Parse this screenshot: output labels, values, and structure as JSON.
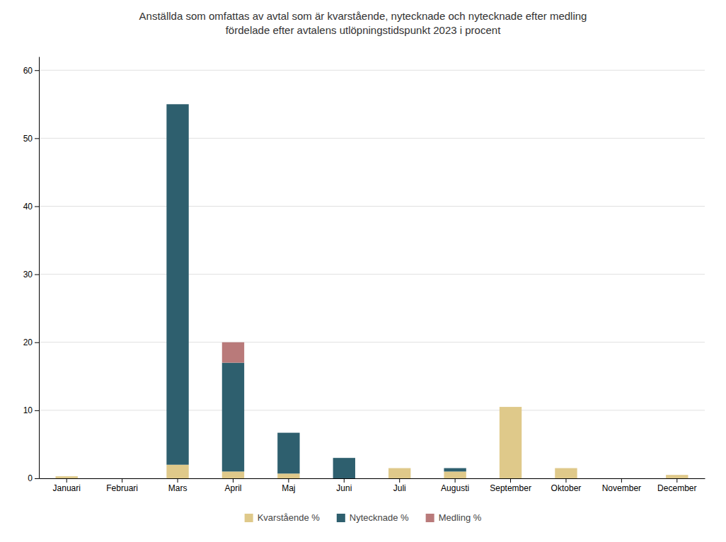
{
  "chart_data": {
    "type": "bar",
    "title": "Anställda som omfattas av avtal som är kvarstående, nytecknade och nytecknade efter medling\nfördelade efter avtalens utlöpningstidspunkt 2023 i procent",
    "categories": [
      "Januari",
      "Februari",
      "Mars",
      "April",
      "Maj",
      "Juni",
      "Juli",
      "Augusti",
      "September",
      "Oktober",
      "November",
      "December"
    ],
    "series": [
      {
        "name": "Kvarstående %",
        "color": "#dfc98a",
        "values": [
          0.3,
          0.0,
          2.0,
          1.0,
          0.7,
          0.0,
          1.5,
          1.0,
          10.5,
          1.5,
          0.0,
          0.5
        ]
      },
      {
        "name": "Nytecknade %",
        "color": "#2e5f6e",
        "values": [
          0.0,
          0.0,
          53.0,
          16.0,
          6.0,
          3.0,
          0.0,
          0.5,
          0.0,
          0.0,
          0.0,
          0.0
        ]
      },
      {
        "name": "Medling %",
        "color": "#b97a7a",
        "values": [
          0.0,
          0.0,
          0.0,
          3.0,
          0.0,
          0.0,
          0.0,
          0.0,
          0.0,
          0.0,
          0.0,
          0.0
        ]
      }
    ],
    "stacked": true,
    "ylim": [
      0,
      62
    ],
    "yticks": [
      0,
      10,
      20,
      30,
      40,
      50,
      60
    ],
    "grid": true,
    "legend": "bottom"
  }
}
